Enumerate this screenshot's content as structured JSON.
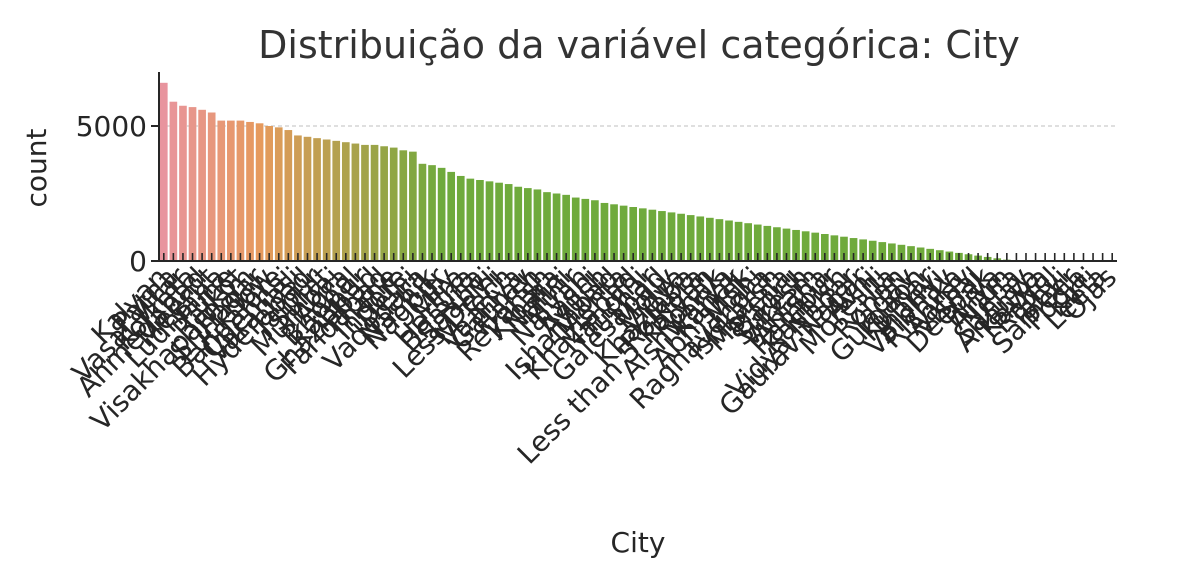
{
  "chart_data": {
    "type": "bar",
    "title": "Distribuição da variável categórica: City",
    "xlabel": "City",
    "ylabel": "count",
    "ylim": [
      0,
      7000
    ],
    "yticks": [
      0,
      5000
    ],
    "grid": "horizontal dashed at 5000",
    "categories": [
      "Kalyan",
      "Patna",
      "Vasai-Virar",
      "Kolkata",
      "Ahmedabad",
      "Meerut",
      "Ludhiana",
      "Pune",
      "Rajkot",
      "Visakhapatnam",
      "Srinagar",
      "Lucknow",
      "Bangalore",
      "Chennai",
      "Varanasi",
      "Hyderabad",
      "Jaipur",
      "Surat",
      "Mumbai",
      "Agra",
      "Bhopal",
      "Kanpur",
      "Ghaziabad",
      "Faridabad",
      "Thane",
      "Indore",
      "Delhi",
      "Vadodara",
      "Nashik",
      "Nagpur",
      "City",
      "Mira",
      "Harsha",
      "Bhavna",
      "Saanvi",
      "Less Delhi",
      "M.Tech",
      "Vaanya",
      "Gaurav",
      "Harsh",
      "Reyansh",
      "Kibara",
      "Nalini",
      "Mihir",
      "Nalyan",
      "Rashi",
      "Ayush",
      "Ishanabad",
      "Mehta",
      "Khaziabad",
      "Nandini",
      "Tushar",
      "Galesabad",
      "Molly",
      "Vidya",
      "Khaziaba",
      "Rolkata",
      "Less than 5 Kalyan",
      "Ronak",
      "Aishwarya",
      "Kanak",
      "Abhishek",
      "Mahi",
      "Raghavendra",
      "Ishkarsh",
      "Morena",
      "Bagru",
      "Suresh",
      "Vikram",
      "Anisha",
      "Rampur",
      "Kashish",
      "Vidya Nagar",
      "Gaurav Nagar",
      "Avni",
      "Moreshi",
      "Ila",
      "Rohan",
      "Yadav",
      "Gurgaon",
      "Kumar",
      "Jhanvi",
      "Vaibhav",
      "Rishika",
      "Aarav",
      "Vishal",
      "Deepak",
      "Priya",
      "Arjun",
      "Neha",
      "Sanjay",
      "Ananya",
      "Kavya",
      "Rahul",
      "Tanvi",
      "Sameer",
      "Pooja",
      "Kirti",
      "Leela",
      "Ojas"
    ],
    "values": [
      6600,
      5900,
      5750,
      5700,
      5600,
      5500,
      5200,
      5200,
      5200,
      5150,
      5100,
      5000,
      4950,
      4850,
      4650,
      4600,
      4550,
      4500,
      4450,
      4400,
      4350,
      4300,
      4300,
      4250,
      4200,
      4100,
      4050,
      3600,
      3550,
      3450,
      3300,
      3150,
      3050,
      3000,
      2950,
      2900,
      2850,
      2750,
      2700,
      2650,
      2550,
      2500,
      2450,
      2350,
      2300,
      2250,
      2150,
      2100,
      2050,
      2000,
      1950,
      1900,
      1850,
      1800,
      1750,
      1700,
      1650,
      1600,
      1550,
      1500,
      1450,
      1400,
      1350,
      1300,
      1250,
      1200,
      1150,
      1100,
      1050,
      1000,
      950,
      900,
      850,
      800,
      750,
      700,
      650,
      600,
      550,
      500,
      450,
      400,
      350,
      300,
      250,
      200,
      150,
      100,
      50,
      0,
      0,
      0,
      0,
      0,
      0,
      0,
      0,
      0,
      0,
      0
    ],
    "colors": {
      "bar_start": "#e8949e",
      "bar_mid": "#e69a5c",
      "bar_end": "#6faa3c"
    }
  }
}
